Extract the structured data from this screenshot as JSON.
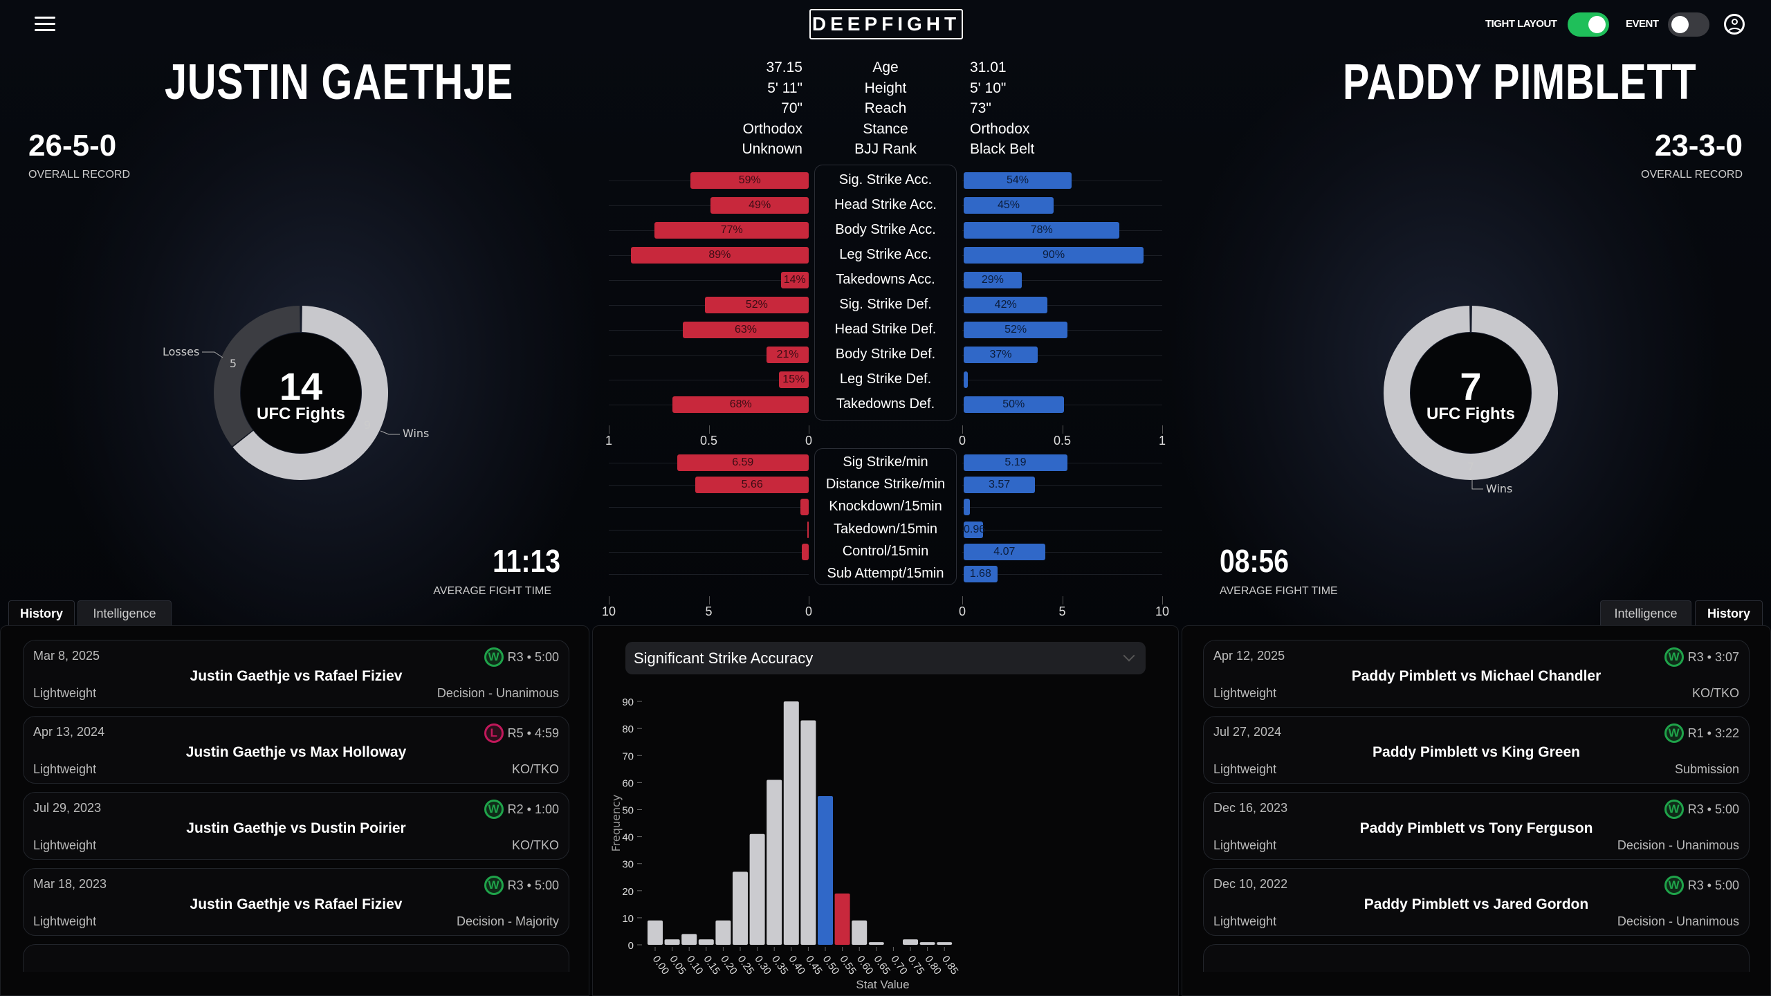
{
  "header": {
    "logo": "DEEPFIGHT",
    "menu_icon": "hamburger-icon",
    "tight_layout_label": "TIGHT LAYOUT",
    "tight_layout_on": true,
    "event_label": "EVENT",
    "event_on": false,
    "user_icon": "user-circle-icon"
  },
  "colors": {
    "red": "#c8283c",
    "blue": "#3068c8",
    "win": "#1fa34a",
    "loss": "#c2185b",
    "toggle_on": "#1fbf5a",
    "toggle_off": "#3a3b40"
  },
  "left_fighter": {
    "name": "JUSTIN GAETHJE",
    "record": "26-5-0",
    "record_label": "OVERALL RECORD",
    "ufc_fights": "14",
    "ufc_fights_label": "UFC Fights",
    "wins": 9,
    "losses": 5,
    "wins_label": "Wins",
    "losses_label": "Losses",
    "avg_fight_time": "11:13",
    "avg_fight_time_label": "AVERAGE FIGHT TIME",
    "tabs": [
      {
        "label": "History",
        "active": true
      },
      {
        "label": "Intelligence",
        "active": false
      }
    ],
    "history": [
      {
        "date": "Mar 8, 2025",
        "result": "W",
        "round_time": "R3 • 5:00",
        "title": "Justin Gaethje vs Rafael Fiziev",
        "weight_class": "Lightweight",
        "method": "Decision - Unanimous"
      },
      {
        "date": "Apr 13, 2024",
        "result": "L",
        "round_time": "R5 • 4:59",
        "title": "Justin Gaethje vs Max Holloway",
        "weight_class": "Lightweight",
        "method": "KO/TKO"
      },
      {
        "date": "Jul 29, 2023",
        "result": "W",
        "round_time": "R2 • 1:00",
        "title": "Justin Gaethje vs Dustin Poirier",
        "weight_class": "Lightweight",
        "method": "KO/TKO"
      },
      {
        "date": "Mar 18, 2023",
        "result": "W",
        "round_time": "R3 • 5:00",
        "title": "Justin Gaethje vs Rafael Fiziev",
        "weight_class": "Lightweight",
        "method": "Decision - Majority"
      }
    ]
  },
  "right_fighter": {
    "name": "PADDY PIMBLETT",
    "record": "23-3-0",
    "record_label": "OVERALL RECORD",
    "ufc_fights": "7",
    "ufc_fights_label": "UFC Fights",
    "wins": 7,
    "losses": 0,
    "wins_label": "Wins",
    "avg_fight_time": "08:56",
    "avg_fight_time_label": "AVERAGE FIGHT TIME",
    "tabs": [
      {
        "label": "Intelligence",
        "active": false
      },
      {
        "label": "History",
        "active": true
      }
    ],
    "history": [
      {
        "date": "Apr 12, 2025",
        "result": "W",
        "round_time": "R3 • 3:07",
        "title": "Paddy Pimblett vs Michael Chandler",
        "weight_class": "Lightweight",
        "method": "KO/TKO"
      },
      {
        "date": "Jul 27, 2024",
        "result": "W",
        "round_time": "R1 • 3:22",
        "title": "Paddy Pimblett vs King Green",
        "weight_class": "Lightweight",
        "method": "Submission"
      },
      {
        "date": "Dec 16, 2023",
        "result": "W",
        "round_time": "R3 • 5:00",
        "title": "Paddy Pimblett vs Tony Ferguson",
        "weight_class": "Lightweight",
        "method": "Decision - Unanimous"
      },
      {
        "date": "Dec 10, 2022",
        "result": "W",
        "round_time": "R3 • 5:00",
        "title": "Paddy Pimblett vs Jared Gordon",
        "weight_class": "Lightweight",
        "method": "Decision - Unanimous"
      }
    ]
  },
  "bio": [
    {
      "label": "Age",
      "left": "37.15",
      "right": "31.01"
    },
    {
      "label": "Height",
      "left": "5' 11\"",
      "right": "5' 10\""
    },
    {
      "label": "Reach",
      "left": "70\"",
      "right": "73\""
    },
    {
      "label": "Stance",
      "left": "Orthodox",
      "right": "Orthodox"
    },
    {
      "label": "BJJ Rank",
      "left": "Unknown",
      "right": "Black Belt"
    }
  ],
  "chart_data": [
    {
      "type": "bar",
      "orientation": "horizontal-mirrored",
      "xlim": [
        0,
        1
      ],
      "ticks": [
        "1",
        "0.5",
        "0",
        "0",
        "0.5",
        "1"
      ],
      "categories": [
        "Sig. Strike Acc.",
        "Head Strike Acc.",
        "Body Strike Acc.",
        "Leg Strike Acc.",
        "Takedowns Acc.",
        "Sig. Strike Def.",
        "Head Strike Def.",
        "Body Strike Def.",
        "Leg Strike Def.",
        "Takedowns Def."
      ],
      "series": [
        {
          "values": [
            0.59,
            0.49,
            0.77,
            0.89,
            0.14,
            0.52,
            0.63,
            0.21,
            0.15,
            0.68
          ],
          "labels": [
            "59%",
            "49%",
            "77%",
            "89%",
            "14%",
            "52%",
            "63%",
            "21%",
            "15%",
            "68%"
          ]
        },
        {
          "values": [
            0.54,
            0.45,
            0.78,
            0.9,
            0.29,
            0.42,
            0.52,
            0.37,
            0.02,
            0.5
          ],
          "labels": [
            "54%",
            "45%",
            "78%",
            "90%",
            "29%",
            "42%",
            "52%",
            "37%",
            "",
            "50%"
          ]
        }
      ]
    },
    {
      "type": "bar",
      "orientation": "horizontal-mirrored",
      "xlim": [
        0,
        10
      ],
      "ticks": [
        "10",
        "5",
        "0",
        "0",
        "5",
        "10"
      ],
      "categories": [
        "Sig Strike/min",
        "Distance Strike/min",
        "Knockdown/15min",
        "Takedown/15min",
        "Control/15min",
        "Sub Attempt/15min"
      ],
      "series": [
        {
          "values": [
            6.59,
            5.66,
            0.4,
            0.05,
            0.35,
            0
          ],
          "labels": [
            "6.59",
            "5.66",
            "",
            "",
            "",
            ""
          ]
        },
        {
          "values": [
            5.19,
            3.57,
            0.3,
            0.96,
            4.07,
            1.68
          ],
          "labels": [
            "5.19",
            "3.57",
            "",
            "0.96",
            "4.07",
            "1.68"
          ]
        }
      ]
    },
    {
      "type": "bar",
      "title": "Significant Strike Accuracy",
      "xlabel": "Stat Value",
      "ylabel": "Frequency",
      "ylim": [
        0,
        90
      ],
      "yticks": [
        "0",
        "10",
        "20",
        "30",
        "40",
        "50",
        "60",
        "70",
        "80",
        "90"
      ],
      "categories": [
        "0.00",
        "0.05",
        "0.10",
        "0.15",
        "0.20",
        "0.25",
        "0.30",
        "0.35",
        "0.40",
        "0.45",
        "0.50",
        "0.55",
        "0.60",
        "0.65",
        "0.70",
        "0.75",
        "0.80",
        "0.85"
      ],
      "values": [
        9,
        2,
        4,
        2,
        9,
        27,
        41,
        61,
        90,
        83,
        55,
        19,
        9,
        1,
        0,
        2,
        1,
        1
      ],
      "highlight": {
        "0.50": "blue",
        "0.55": "red"
      }
    }
  ]
}
